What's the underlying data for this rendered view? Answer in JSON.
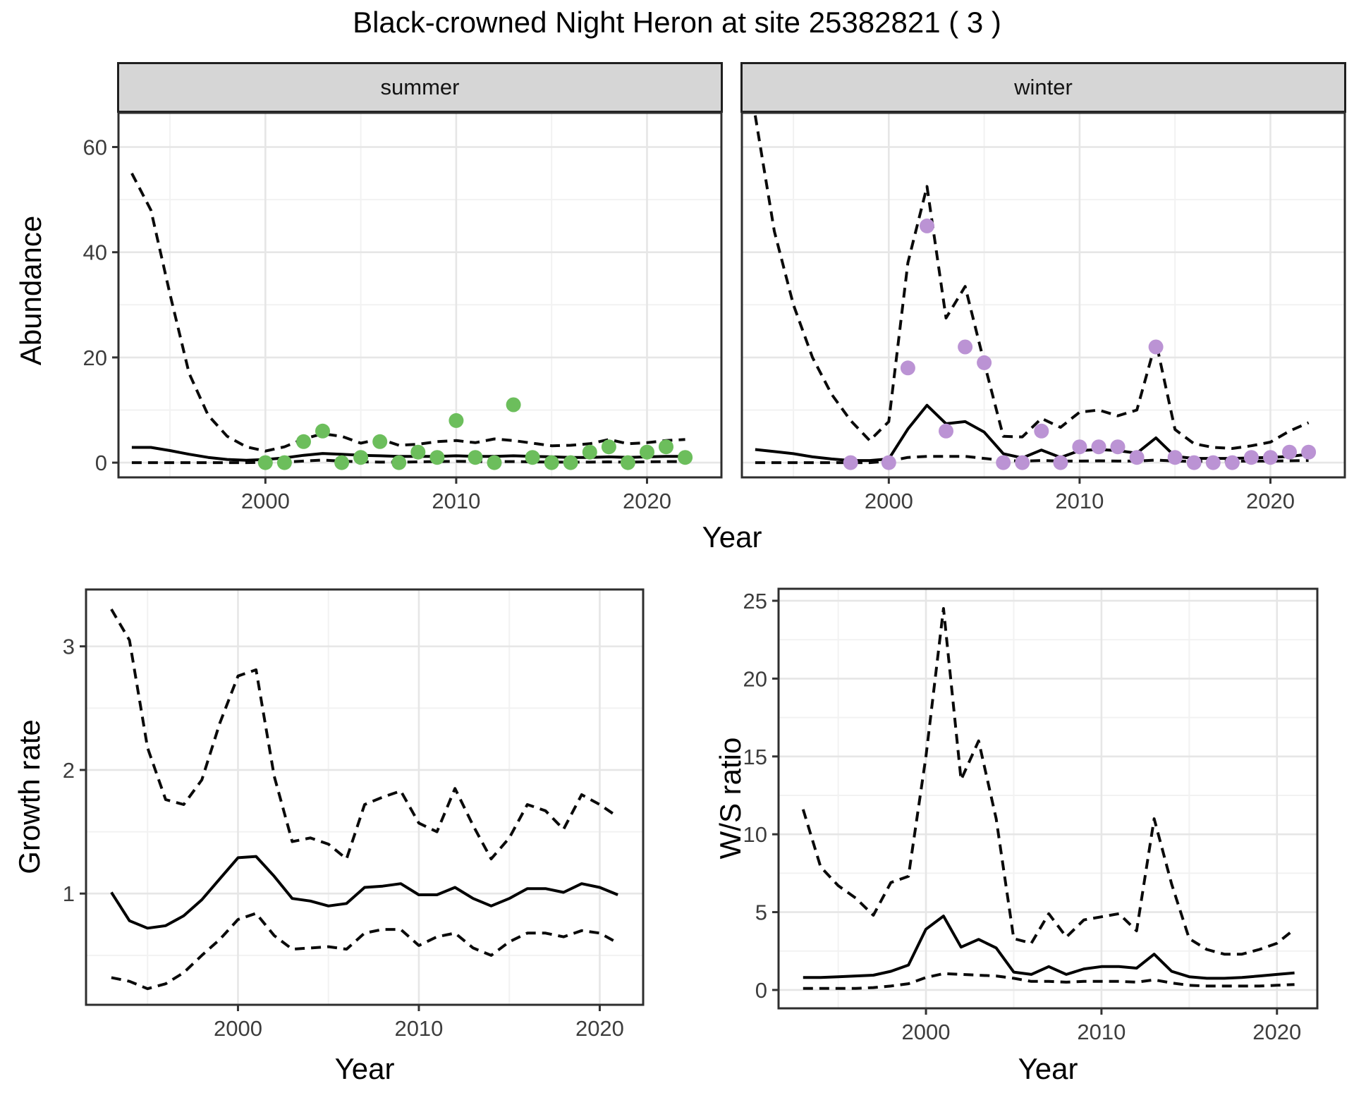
{
  "header": {
    "title": "Black-crowned Night Heron at site 25382821 ( 3 )"
  },
  "facets": {
    "summer_label": "summer",
    "winter_label": "winter"
  },
  "axis_titles": {
    "abundance": "Abundance",
    "growth": "Growth rate",
    "ws": "W/S ratio",
    "x": "Year"
  },
  "colors": {
    "summer_point": "#6cbe5c",
    "winter_point": "#bb93d4",
    "fit_line": "#000000",
    "ci_line": "#0a0a0a",
    "grid_major": "#e6e6e6",
    "grid_minor": "#f2f2f2",
    "panel_border": "#2e2e2e",
    "strip_bg": "#d6d6d6",
    "tick_text": "#3d3d3d",
    "panel_bg": "#ffffff"
  },
  "chart_data": [
    {
      "name": "summer-abundance",
      "type": "line",
      "facet": "summer",
      "xlim": [
        1992.3,
        2023.9
      ],
      "ylim": [
        -2.8,
        66.5
      ],
      "xticks": [
        2000,
        2010,
        2020
      ],
      "xticks_minor": [
        1995,
        2005,
        2015
      ],
      "yticks": [
        0,
        20,
        40,
        60
      ],
      "yticks_minor": [
        10,
        30,
        50
      ],
      "show_y_tick_labels": true,
      "x": [
        1993,
        1994,
        1995,
        1996,
        1997,
        1998,
        1999,
        2000,
        2001,
        2002,
        2003,
        2004,
        2005,
        2006,
        2007,
        2008,
        2009,
        2010,
        2011,
        2012,
        2013,
        2014,
        2015,
        2016,
        2017,
        2018,
        2019,
        2020,
        2021,
        2022
      ],
      "series": [
        {
          "name": "fit",
          "style": "solid",
          "values": [
            2.9,
            2.9,
            2.3,
            1.6,
            1.0,
            0.6,
            0.45,
            0.6,
            0.9,
            1.4,
            1.75,
            1.6,
            1.4,
            1.3,
            1.2,
            1.2,
            1.2,
            1.3,
            1.2,
            1.2,
            1.3,
            1.2,
            1.1,
            1.0,
            1.0,
            1.1,
            1.0,
            1.1,
            1.2,
            1.2
          ]
        },
        {
          "name": "upper_ci",
          "style": "dashed",
          "values": [
            55,
            48,
            32,
            17,
            9,
            5,
            3,
            2.2,
            3,
            4.5,
            5.5,
            5,
            3.7,
            4.5,
            3.3,
            3.5,
            4,
            4.2,
            3.8,
            4.5,
            4.2,
            3.7,
            3.2,
            3.3,
            3.6,
            4.4,
            3.6,
            3.8,
            4.2,
            4.4
          ]
        },
        {
          "name": "lower_ci",
          "style": "dashed",
          "values": [
            0,
            0,
            0,
            0,
            0,
            0,
            0,
            0.05,
            0.1,
            0.3,
            0.5,
            0.3,
            0.15,
            0.1,
            0.1,
            0.15,
            0.2,
            0.25,
            0.2,
            0.2,
            0.2,
            0.15,
            0.1,
            0.1,
            0.1,
            0.15,
            0.1,
            0.15,
            0.2,
            0.2
          ]
        }
      ],
      "points": {
        "color_key": "summer_point",
        "x": [
          2000,
          2001,
          2002,
          2003,
          2004,
          2005,
          2006,
          2007,
          2008,
          2009,
          2010,
          2011,
          2012,
          2013,
          2014,
          2015,
          2016,
          2017,
          2018,
          2019,
          2020,
          2021,
          2022
        ],
        "y": [
          0,
          0,
          4,
          6,
          0,
          1,
          4,
          0,
          2,
          1,
          8,
          1,
          0,
          11,
          1,
          0,
          0,
          2,
          3,
          0,
          2,
          3,
          1
        ]
      }
    },
    {
      "name": "winter-abundance",
      "type": "line",
      "facet": "winter",
      "xlim": [
        1992.3,
        2023.9
      ],
      "ylim": [
        -2.8,
        66.5
      ],
      "xticks": [
        2000,
        2010,
        2020
      ],
      "xticks_minor": [
        1995,
        2005,
        2015
      ],
      "yticks": [
        0,
        20,
        40,
        60
      ],
      "yticks_minor": [
        10,
        30,
        50
      ],
      "show_y_tick_labels": false,
      "x": [
        1993,
        1994,
        1995,
        1996,
        1997,
        1998,
        1999,
        2000,
        2001,
        2002,
        2003,
        2004,
        2005,
        2006,
        2007,
        2008,
        2009,
        2010,
        2011,
        2012,
        2013,
        2014,
        2015,
        2016,
        2017,
        2018,
        2019,
        2020,
        2021,
        2022
      ],
      "series": [
        {
          "name": "fit",
          "style": "solid",
          "values": [
            2.5,
            2.1,
            1.7,
            1.1,
            0.7,
            0.4,
            0.4,
            0.7,
            6.4,
            10.9,
            7.4,
            7.8,
            5.8,
            1.7,
            0.9,
            2.4,
            1.0,
            2.3,
            2.5,
            2.3,
            1.8,
            4.7,
            1.2,
            0.8,
            0.8,
            0.8,
            0.9,
            1.0,
            1.2,
            1.6
          ]
        },
        {
          "name": "upper_ci",
          "style": "dashed",
          "values": [
            66,
            44,
            30,
            20,
            13,
            8,
            4.2,
            7.8,
            38,
            52.5,
            27.5,
            33.5,
            19,
            5,
            4.9,
            8.4,
            6.7,
            9.6,
            10,
            8.9,
            10,
            23,
            6.3,
            3.6,
            2.9,
            2.7,
            3.2,
            3.9,
            6.0,
            7.6
          ]
        },
        {
          "name": "lower_ci",
          "style": "dashed",
          "values": [
            0,
            0,
            0,
            0,
            0,
            0,
            0,
            0.3,
            1.0,
            1.2,
            1.2,
            1.2,
            0.8,
            0.4,
            0.3,
            0.4,
            0.3,
            0.3,
            0.35,
            0.3,
            0.3,
            0.5,
            0.3,
            0.25,
            0.25,
            0.25,
            0.3,
            0.3,
            0.35,
            0.4
          ]
        }
      ],
      "points": {
        "color_key": "winter_point",
        "x": [
          1998,
          2000,
          2001,
          2002,
          2003,
          2004,
          2005,
          2006,
          2007,
          2008,
          2009,
          2010,
          2011,
          2012,
          2013,
          2014,
          2015,
          2016,
          2017,
          2018,
          2019,
          2020,
          2021,
          2022
        ],
        "y": [
          0,
          0,
          18,
          45,
          6,
          22,
          19,
          0,
          0,
          6,
          0,
          3,
          3,
          3,
          1,
          22,
          1,
          0,
          0,
          0,
          1,
          1,
          2,
          2
        ]
      }
    },
    {
      "name": "growth-rate",
      "type": "line",
      "facet": "none",
      "xlim": [
        1991.6,
        2022.4
      ],
      "ylim": [
        0.1,
        3.46
      ],
      "xticks": [
        2000,
        2010,
        2020
      ],
      "xticks_minor": [
        1995,
        2005,
        2015
      ],
      "yticks": [
        1,
        2,
        3
      ],
      "yticks_minor": [
        0.5,
        1.5,
        2.5
      ],
      "show_y_tick_labels": true,
      "x": [
        1993,
        1994,
        1995,
        1996,
        1997,
        1998,
        1999,
        2000,
        2001,
        2002,
        2003,
        2004,
        2005,
        2006,
        2007,
        2008,
        2009,
        2010,
        2011,
        2012,
        2013,
        2014,
        2015,
        2016,
        2017,
        2018,
        2019,
        2020,
        2021
      ],
      "series": [
        {
          "name": "fit",
          "style": "solid",
          "values": [
            1.01,
            0.78,
            0.72,
            0.74,
            0.82,
            0.95,
            1.12,
            1.29,
            1.3,
            1.14,
            0.96,
            0.94,
            0.9,
            0.92,
            1.05,
            1.06,
            1.08,
            0.99,
            0.99,
            1.05,
            0.96,
            0.9,
            0.96,
            1.04,
            1.04,
            1.01,
            1.08,
            1.05,
            0.99
          ]
        },
        {
          "name": "upper_ci",
          "style": "dashed",
          "values": [
            3.3,
            3.05,
            2.18,
            1.76,
            1.72,
            1.92,
            2.38,
            2.76,
            2.81,
            1.95,
            1.42,
            1.45,
            1.4,
            1.28,
            1.72,
            1.78,
            1.83,
            1.57,
            1.5,
            1.85,
            1.55,
            1.28,
            1.45,
            1.72,
            1.67,
            1.52,
            1.8,
            1.72,
            1.62
          ]
        },
        {
          "name": "lower_ci",
          "style": "dashed",
          "values": [
            0.32,
            0.29,
            0.23,
            0.27,
            0.36,
            0.5,
            0.63,
            0.79,
            0.84,
            0.66,
            0.55,
            0.56,
            0.57,
            0.55,
            0.68,
            0.71,
            0.71,
            0.58,
            0.65,
            0.68,
            0.56,
            0.5,
            0.61,
            0.68,
            0.68,
            0.65,
            0.7,
            0.68,
            0.6
          ]
        }
      ],
      "points": null
    },
    {
      "name": "ws-ratio",
      "type": "line",
      "facet": "none",
      "xlim": [
        1991.6,
        2022.3
      ],
      "ylim": [
        -1.18,
        25.77
      ],
      "xticks": [
        2000,
        2010,
        2020
      ],
      "xticks_minor": [
        1995,
        2005,
        2015
      ],
      "yticks": [
        0,
        5,
        10,
        15,
        20,
        25
      ],
      "yticks_minor": [
        2.5,
        7.5,
        12.5,
        17.5,
        22.5
      ],
      "show_y_tick_labels": true,
      "x": [
        1993,
        1994,
        1995,
        1996,
        1997,
        1998,
        1999,
        2000,
        2001,
        2002,
        2003,
        2004,
        2005,
        2006,
        2007,
        2008,
        2009,
        2010,
        2011,
        2012,
        2013,
        2014,
        2015,
        2016,
        2017,
        2018,
        2019,
        2020,
        2021
      ],
      "series": [
        {
          "name": "fit",
          "style": "solid",
          "values": [
            0.8,
            0.8,
            0.85,
            0.9,
            0.95,
            1.2,
            1.6,
            3.9,
            4.75,
            2.75,
            3.25,
            2.7,
            1.15,
            1.0,
            1.5,
            1.0,
            1.35,
            1.5,
            1.5,
            1.4,
            2.3,
            1.2,
            0.85,
            0.75,
            0.75,
            0.8,
            0.9,
            1.0,
            1.1
          ]
        },
        {
          "name": "upper_ci",
          "style": "dashed",
          "values": [
            11.6,
            7.9,
            6.7,
            5.9,
            4.8,
            6.9,
            7.3,
            15,
            24.5,
            13.5,
            16,
            11,
            3.3,
            3.0,
            4.9,
            3.4,
            4.5,
            4.7,
            4.9,
            3.8,
            11,
            6.8,
            3.3,
            2.6,
            2.3,
            2.3,
            2.6,
            3.0,
            3.9
          ]
        },
        {
          "name": "lower_ci",
          "style": "dashed",
          "values": [
            0.1,
            0.1,
            0.1,
            0.1,
            0.15,
            0.25,
            0.4,
            0.8,
            1.05,
            1.0,
            0.95,
            0.9,
            0.75,
            0.55,
            0.55,
            0.5,
            0.55,
            0.55,
            0.55,
            0.5,
            0.65,
            0.45,
            0.3,
            0.25,
            0.25,
            0.25,
            0.25,
            0.3,
            0.35
          ]
        }
      ],
      "points": null
    }
  ]
}
